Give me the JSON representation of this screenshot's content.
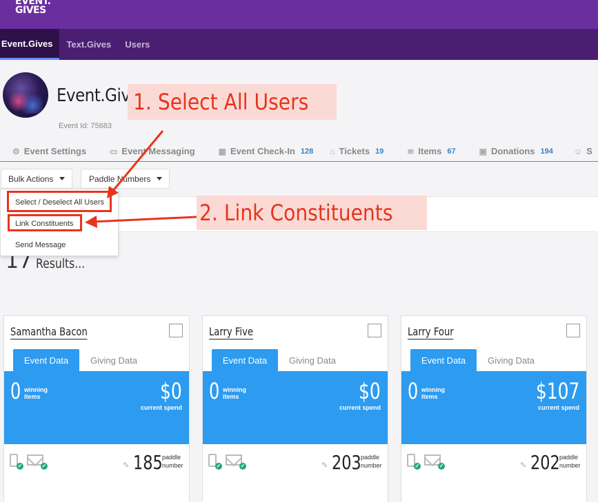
{
  "brand": {
    "logo_line1": "EVENT.",
    "logo_line2": "GIVES"
  },
  "nav": {
    "tabs": [
      {
        "label": "Event.Gives"
      },
      {
        "label": "Text.Gives"
      },
      {
        "label": "Users"
      }
    ]
  },
  "event": {
    "title": "Event.Gives",
    "id_label": "Event Id:",
    "id_value": "75683"
  },
  "subtabs": [
    {
      "label": "Event Settings",
      "icon": "gear-icon",
      "count": ""
    },
    {
      "label": "Event Messaging",
      "icon": "inbox-icon",
      "count": ""
    },
    {
      "label": "Event Check-In",
      "icon": "clipboard-icon",
      "count": "128"
    },
    {
      "label": "Tickets",
      "icon": "tag-icon",
      "count": "19"
    },
    {
      "label": "Items",
      "icon": "layers-icon",
      "count": "67"
    },
    {
      "label": "Donations",
      "icon": "gift-icon",
      "count": "194"
    },
    {
      "label": "S",
      "icon": "sponsor-icon",
      "count": ""
    }
  ],
  "actions": {
    "bulk_label": "Bulk Actions",
    "paddle_label": "Paddle Numbers"
  },
  "bulk_menu": {
    "items": [
      {
        "label": "Select / Deselect All Users"
      },
      {
        "label": "Link Constituents"
      },
      {
        "label": "Send Message"
      }
    ]
  },
  "results": {
    "count": "17",
    "label": "Results..."
  },
  "cards": [
    {
      "name": "Samantha Bacon",
      "tab_active": "Event Data",
      "tab_other": "Giving Data",
      "winning_count": "0",
      "winning_label": "winning items",
      "spend": "$0",
      "spend_label": "current spend",
      "paddle": "185",
      "paddle_label": "paddle number"
    },
    {
      "name": "Larry Five",
      "tab_active": "Event Data",
      "tab_other": "Giving Data",
      "winning_count": "0",
      "winning_label": "winning items",
      "spend": "$0",
      "spend_label": "current spend",
      "paddle": "203",
      "paddle_label": "paddle number"
    },
    {
      "name": "Larry Four",
      "tab_active": "Event Data",
      "tab_other": "Giving Data",
      "winning_count": "0",
      "winning_label": "winning items",
      "spend": "$107",
      "spend_label": "current spend",
      "paddle": "202",
      "paddle_label": "paddle number"
    }
  ],
  "annotations": {
    "step1": "1. Select All Users",
    "step2": "2. Link Constituents"
  },
  "colors": {
    "topbar": "#6a2e9e",
    "navbar": "#4a1f72",
    "accent_blue": "#2d9bf0",
    "annotation_red": "#e8341c",
    "annotation_bg": "#fbdad6"
  }
}
